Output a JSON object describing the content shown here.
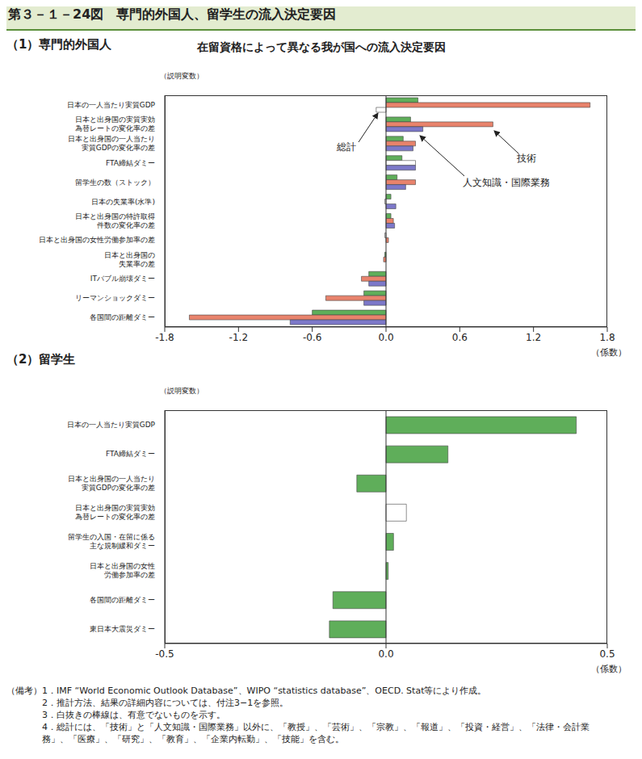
{
  "title": "第３－１－24図　専門的外国人、留学生の流入決定要因",
  "subtitle": "在留資格によって異なる我が国への流入決定要因",
  "notes_label": "（備考）",
  "notes": [
    "1．IMF “World Economic Outlook Database”、WIPO “statistics database”、OECD. Stat等により作成。",
    "2．推計方法、結果の詳細内容については、付注3−1を参照。",
    "3．白抜きの棒線は、有意でないものを示す。",
    "4．総計には、「技術」と「人文知識・国際業務」以外に、「教授」、「芸術」、「宗教」、「報道」、「投資・経営」、「法律・会計業務」、「医療」、「研究」、「教育」、「企業内転勤」、「技能」を含む。"
  ],
  "chart_data": [
    {
      "type": "bar",
      "orientation": "horizontal",
      "title": "（1）専門的外国人",
      "ylabel": "（説明変数）",
      "xlabel": "（係数）",
      "xlim": [
        -1.8,
        1.8
      ],
      "xticks": [
        -1.8,
        -1.2,
        -0.6,
        {
          "value": 0,
          "label": "0.0"
        },
        0.6,
        1.2,
        1.8
      ],
      "categories": [
        "日本の一人当たり実質GDP",
        "日本と出身国の実質実効\n為替レートの変化率の差",
        "日本と出身国の一人当たり\n実質GDPの変化率の差",
        "FTA締結ダミー",
        "留学生の数（ストック）",
        "日本の失業率(水準)",
        "日本と出身国の特許取得\n件数の変化率の差",
        "日本と出身国の女性労働参加率の差",
        "日本と出身国の\n失業率の差",
        "ITバブル崩壊ダミー",
        "リーマンショックダミー",
        "各国間の距離ダミー"
      ],
      "series": [
        {
          "name": "総計",
          "color": "#5fae5a",
          "values": [
            0.26,
            0.2,
            0.14,
            0.13,
            0.09,
            0.04,
            0.04,
            -0.01,
            -0.01,
            -0.14,
            -0.18,
            -0.6
          ],
          "significant": [
            true,
            true,
            true,
            true,
            true,
            true,
            true,
            false,
            true,
            true,
            true,
            true
          ]
        },
        {
          "name": "技術",
          "color": "#e8836c",
          "values": [
            1.66,
            0.87,
            0.24,
            0.24,
            0.24,
            -0.01,
            0.06,
            0.02,
            -0.02,
            -0.2,
            -0.49,
            -1.6
          ],
          "significant": [
            true,
            true,
            true,
            false,
            true,
            false,
            true,
            true,
            true,
            true,
            true,
            true
          ]
        },
        {
          "name": "人文知識・国際業務",
          "color": "#7c78c9",
          "values": [
            -0.08,
            0.3,
            0.22,
            0.24,
            0.16,
            0.08,
            0.07,
            null,
            null,
            -0.14,
            -0.18,
            -0.78
          ],
          "significant": [
            false,
            true,
            true,
            true,
            true,
            true,
            true,
            true,
            true,
            true,
            true,
            true
          ]
        }
      ]
    },
    {
      "type": "bar",
      "orientation": "horizontal",
      "title": "（2）留学生",
      "ylabel": "（説明変数）",
      "xlabel": "（係数）",
      "xlim": [
        -0.5,
        0.5
      ],
      "xticks": [
        -0.5,
        {
          "value": 0,
          "label": "0.0"
        },
        0.5
      ],
      "categories": [
        "日本の一人当たり実質GDP",
        "FTA締結ダミー",
        "日本と出身国の一人当たり\n実質GDPの変化率の差",
        "日本と出身国の実質実効\n為替レートの変化率の差",
        "留学生の入国・在留に係る\n主な規制緩和ダミー",
        "日本と出身国の女性\n労働参加率の差",
        "各国間の距離ダミー",
        "東日本大震災ダミー"
      ],
      "color": "#5fae5a",
      "values": [
        0.43,
        0.14,
        -0.066,
        0.046,
        0.017,
        0.005,
        -0.12,
        -0.128
      ],
      "significant": [
        true,
        true,
        true,
        false,
        true,
        true,
        true,
        true
      ]
    }
  ]
}
